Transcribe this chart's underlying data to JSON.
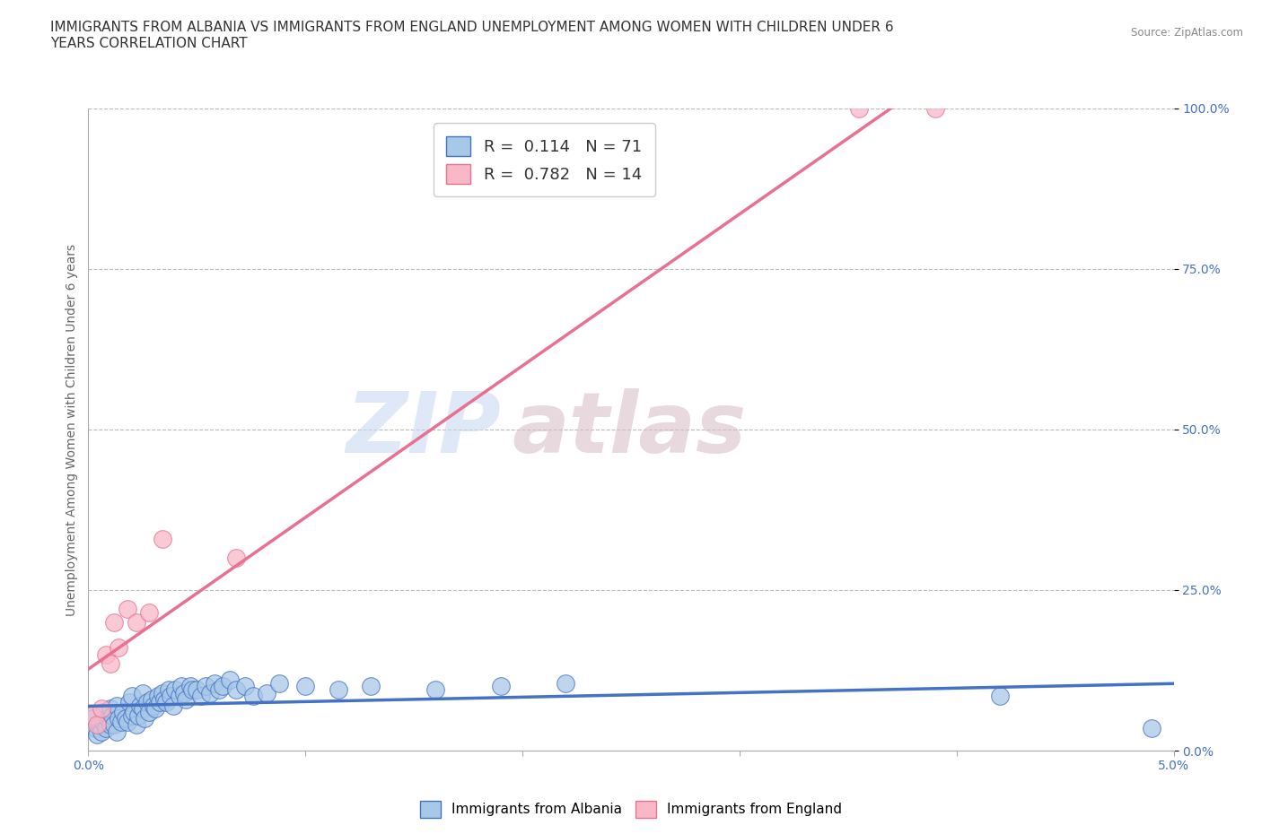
{
  "title": "IMMIGRANTS FROM ALBANIA VS IMMIGRANTS FROM ENGLAND UNEMPLOYMENT AMONG WOMEN WITH CHILDREN UNDER 6\nYEARS CORRELATION CHART",
  "source": "Source: ZipAtlas.com",
  "ylabel": "Unemployment Among Women with Children Under 6 years",
  "xlim": [
    0.0,
    5.0
  ],
  "ylim": [
    0.0,
    100.0
  ],
  "yticks": [
    0.0,
    25.0,
    50.0,
    75.0,
    100.0
  ],
  "ytick_labels": [
    "0.0%",
    "25.0%",
    "50.0%",
    "75.0%",
    "100.0%"
  ],
  "xtick_labels": [
    "0.0%",
    "",
    "",
    "",
    "",
    "5.0%"
  ],
  "watermark_zip": "ZIP",
  "watermark_atlas": "atlas",
  "albania_color": "#a8c8e8",
  "england_color": "#f8b8c8",
  "albania_line_color": "#4472c4",
  "england_line_color": "#e87090",
  "albania_R": 0.114,
  "albania_N": 71,
  "england_R": 0.782,
  "england_N": 14,
  "albania_x": [
    0.02,
    0.03,
    0.04,
    0.05,
    0.06,
    0.07,
    0.07,
    0.08,
    0.09,
    0.1,
    0.1,
    0.11,
    0.12,
    0.13,
    0.13,
    0.14,
    0.15,
    0.16,
    0.17,
    0.18,
    0.19,
    0.2,
    0.2,
    0.21,
    0.22,
    0.23,
    0.24,
    0.25,
    0.25,
    0.26,
    0.27,
    0.28,
    0.29,
    0.3,
    0.31,
    0.32,
    0.33,
    0.34,
    0.35,
    0.36,
    0.37,
    0.38,
    0.39,
    0.4,
    0.42,
    0.43,
    0.44,
    0.45,
    0.47,
    0.48,
    0.5,
    0.52,
    0.54,
    0.56,
    0.58,
    0.6,
    0.62,
    0.65,
    0.68,
    0.72,
    0.76,
    0.82,
    0.88,
    1.0,
    1.15,
    1.3,
    1.6,
    1.9,
    2.2,
    4.2,
    4.9
  ],
  "albania_y": [
    5.0,
    3.5,
    2.5,
    4.0,
    3.0,
    4.5,
    6.0,
    3.5,
    5.0,
    4.0,
    6.5,
    5.5,
    4.0,
    3.0,
    7.0,
    5.0,
    4.5,
    6.0,
    5.0,
    4.5,
    7.5,
    5.5,
    8.5,
    6.0,
    4.0,
    5.5,
    7.0,
    6.5,
    9.0,
    5.0,
    7.5,
    6.0,
    8.0,
    7.0,
    6.5,
    8.5,
    7.5,
    9.0,
    8.0,
    7.5,
    9.5,
    8.5,
    7.0,
    9.5,
    8.5,
    10.0,
    9.0,
    8.0,
    10.0,
    9.5,
    9.5,
    8.5,
    10.0,
    9.0,
    10.5,
    9.5,
    10.0,
    11.0,
    9.5,
    10.0,
    8.5,
    9.0,
    10.5,
    10.0,
    9.5,
    10.0,
    9.5,
    10.0,
    10.5,
    8.5,
    3.5
  ],
  "england_x": [
    0.02,
    0.04,
    0.06,
    0.08,
    0.1,
    0.12,
    0.14,
    0.18,
    0.22,
    0.28,
    0.34,
    0.68,
    3.55,
    3.9
  ],
  "england_y": [
    5.5,
    4.0,
    6.5,
    15.0,
    13.5,
    20.0,
    16.0,
    22.0,
    20.0,
    21.5,
    33.0,
    30.0,
    100.0,
    100.0
  ],
  "background_color": "#ffffff",
  "grid_color": "#bbbbbb",
  "title_fontsize": 11,
  "axis_fontsize": 10,
  "tick_color": "#4472c4"
}
